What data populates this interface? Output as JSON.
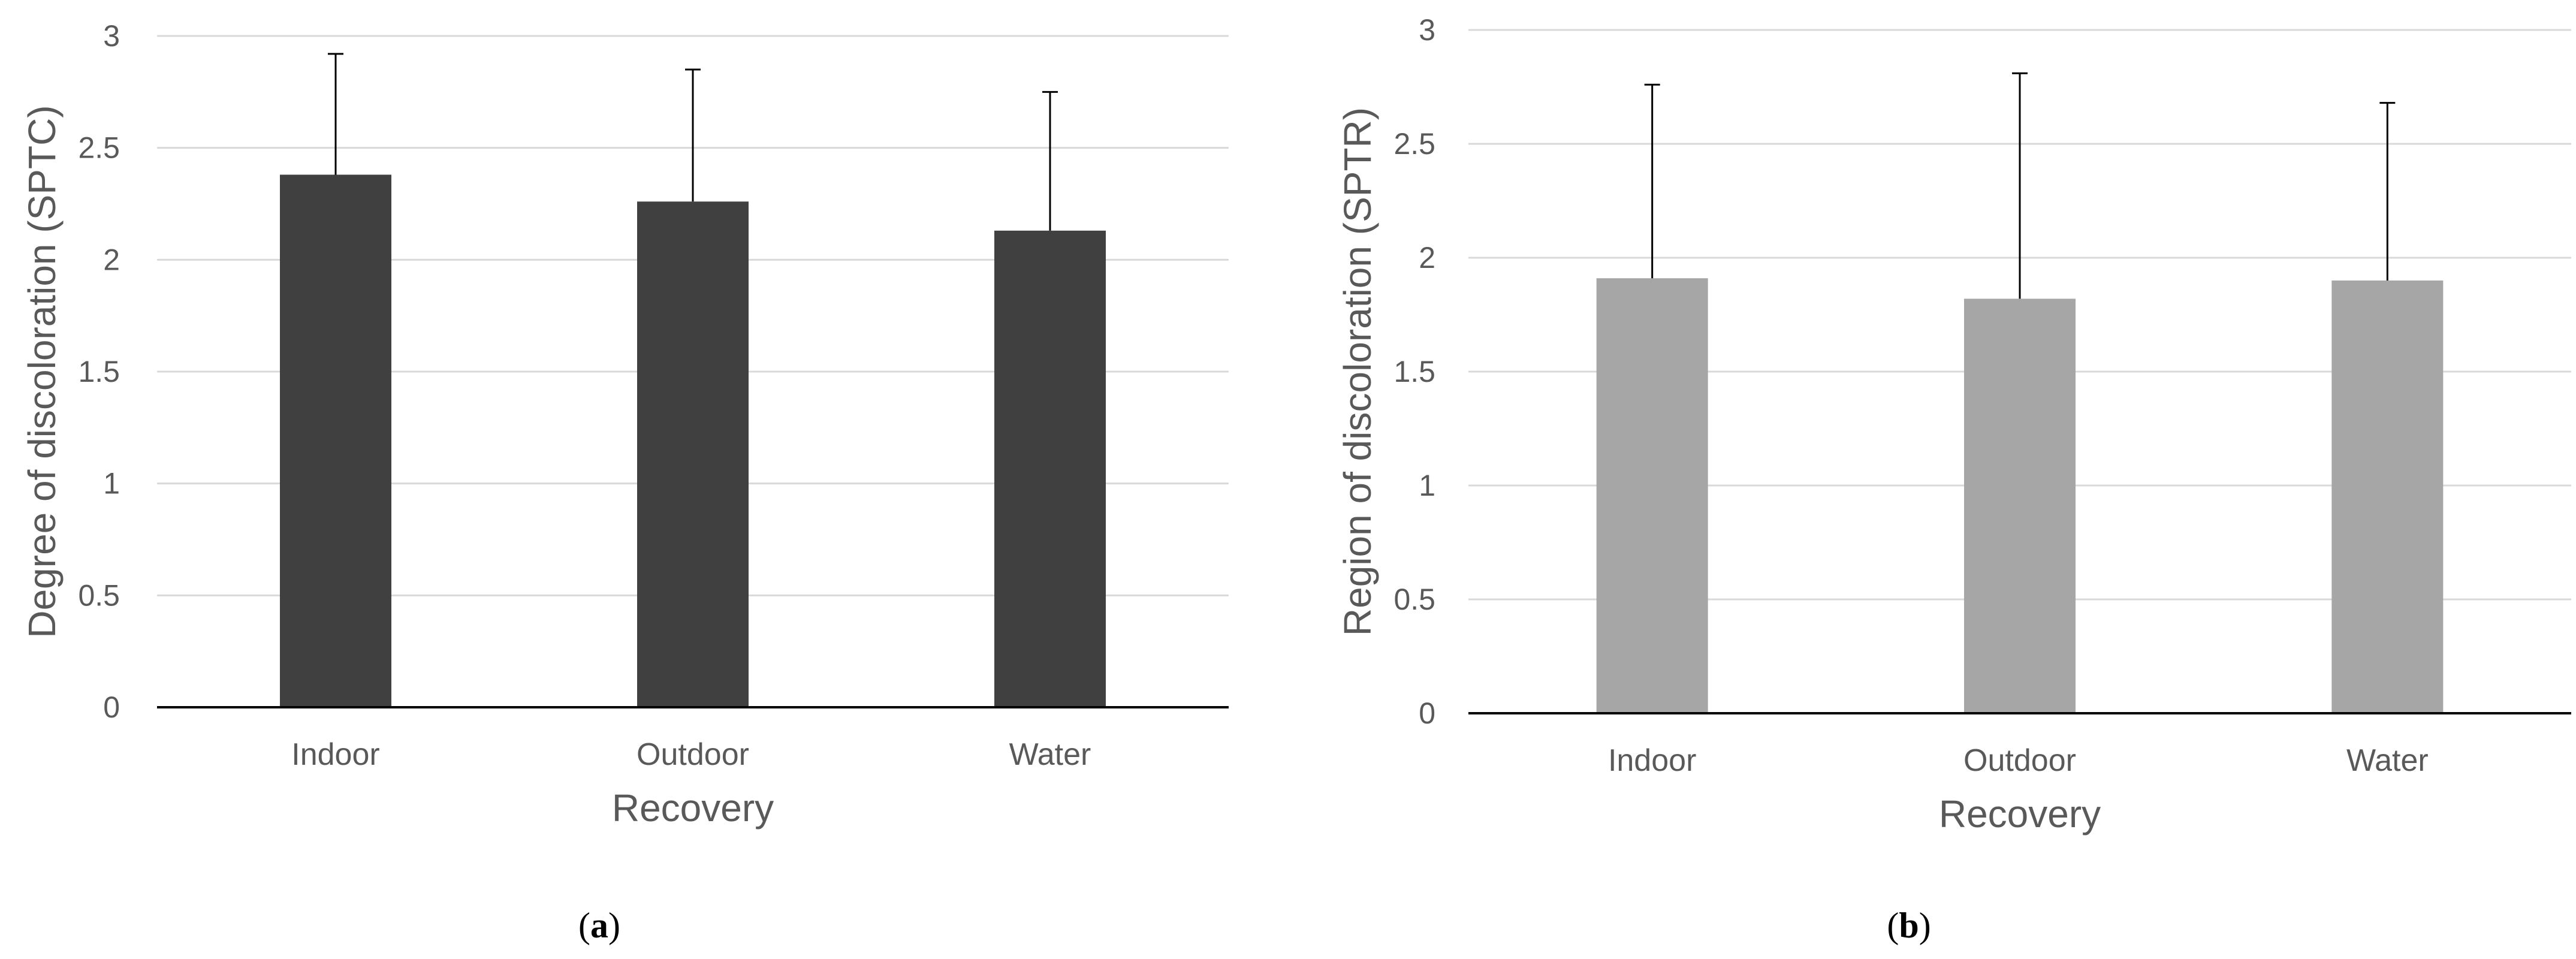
{
  "chart_data": [
    {
      "type": "bar",
      "panel_label": "a",
      "categories": [
        "Indoor",
        "Outdoor",
        "Water"
      ],
      "values": [
        2.38,
        2.26,
        2.13
      ],
      "error_upper": [
        2.92,
        2.85,
        2.75
      ],
      "xlabel": "Recovery",
      "ylabel": "Degree of discoloration (SPTC)",
      "ylim": [
        0,
        3
      ],
      "yticks": [
        "0",
        "0.5",
        "1",
        "1.5",
        "2",
        "2.5",
        "3"
      ],
      "bar_color": "#404040",
      "grid": true
    },
    {
      "type": "bar",
      "panel_label": "b",
      "categories": [
        "Indoor",
        "Outdoor",
        "Water"
      ],
      "values": [
        1.91,
        1.82,
        1.9
      ],
      "error_upper": [
        2.76,
        2.81,
        2.68
      ],
      "xlabel": "Recovery",
      "ylabel": "Region of discoloration (SPTR)",
      "ylim": [
        0,
        3
      ],
      "yticks": [
        "0",
        "0.5",
        "1",
        "1.5",
        "2",
        "2.5",
        "3"
      ],
      "bar_color": "#a6a6a6",
      "grid": true
    }
  ]
}
